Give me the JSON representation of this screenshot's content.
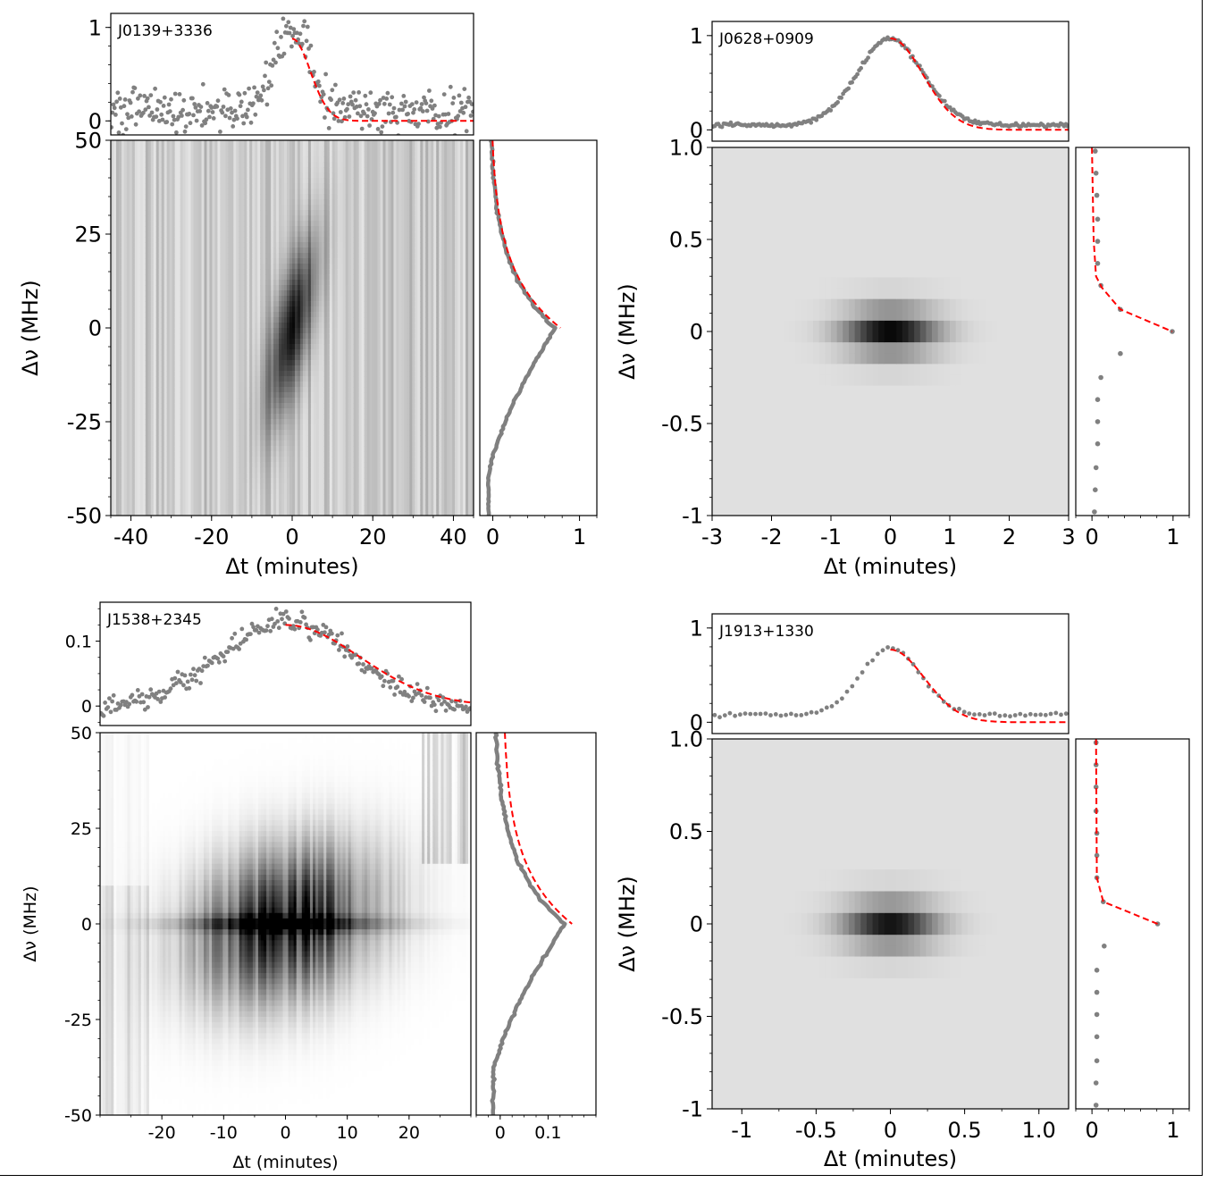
{
  "figure": {
    "description": "Dynamic spectra of four pulsars with time and frequency profiles",
    "colors": {
      "data_points": "#808080",
      "fit_line": "#ff0000",
      "axes": "#000000",
      "background": "#ffffff"
    }
  },
  "chart_data": [
    {
      "type": "heatmap",
      "title": "J0139+3336",
      "xlabel": "Δt (minutes)",
      "ylabel": "Δν (MHz)",
      "xlim": [
        -45,
        45
      ],
      "ylim": [
        -50,
        50
      ],
      "xticks": [
        -40,
        -20,
        0,
        20,
        40
      ],
      "xtick_labels": [
        "-40",
        "-20",
        "0",
        "20",
        "40"
      ],
      "yticks": [
        -50,
        -25,
        0,
        25,
        50
      ],
      "ytick_labels": [
        "-50",
        "-25",
        "0",
        "25",
        "50"
      ],
      "heatmap": {
        "colormap": "gray_r",
        "feature": "tilted elongated peak through origin",
        "slope_min_per_mhz": 0.18,
        "noise": "vertical striping"
      },
      "time_profile": {
        "ylim": [
          -0.15,
          1.15
        ],
        "yticks": [
          0,
          1
        ],
        "ytick_labels": [
          "0",
          "1"
        ],
        "peak_x": 0,
        "peak_y": 0.9,
        "width_min": 4.5,
        "noise_sigma": 0.12,
        "baseline": 0.05,
        "fit": {
          "type": "exponential decay",
          "start_x": 0,
          "amplitude": 0.88,
          "tau_min": 4.5,
          "offset": 0
        }
      },
      "freq_profile": {
        "xlim": [
          -0.15,
          1.2
        ],
        "xticks": [
          0,
          1
        ],
        "xtick_labels": [
          "0",
          "1"
        ],
        "peak_y": 0,
        "peak_value": 0.72,
        "min_value": -0.05,
        "fit": {
          "type": "upper-half decay",
          "peak_value": 0.78,
          "end_value": -0.03
        }
      }
    },
    {
      "type": "heatmap",
      "title": "J0628+0909",
      "xlabel": "Δt (minutes)",
      "ylabel": "Δν (MHz)",
      "xlim": [
        -3,
        3
      ],
      "ylim": [
        -1,
        1
      ],
      "xticks": [
        -3,
        -2,
        -1,
        0,
        1,
        2,
        3
      ],
      "xtick_labels": [
        "-3",
        "-2",
        "-1",
        "0",
        "1",
        "2",
        "3"
      ],
      "yticks": [
        -1,
        -0.5,
        0,
        0.5,
        1.0
      ],
      "ytick_labels": [
        "-1",
        "-0.5",
        "0",
        "0.5",
        "1.0"
      ],
      "heatmap": {
        "colormap": "gray_r",
        "feature": "horizontal band centered at 0 MHz, 0 min",
        "background_level": 0.12
      },
      "time_profile": {
        "ylim": [
          -0.12,
          1.15
        ],
        "yticks": [
          0,
          1
        ],
        "ytick_labels": [
          "0",
          "1"
        ],
        "peak_x": 0,
        "peak_y": 0.97,
        "width_min": 0.55,
        "noise_sigma": 0.01,
        "baseline": 0.05,
        "fit": {
          "type": "gaussian decay",
          "start_x": 0,
          "amplitude": 0.97,
          "sigma_min": 0.55,
          "offset": 0
        }
      },
      "freq_profile": {
        "xlim": [
          -0.2,
          1.2
        ],
        "xticks": [
          0,
          1
        ],
        "xtick_labels": [
          "0",
          "1"
        ],
        "points": [
          {
            "y": 0.98,
            "v": 0.04
          },
          {
            "y": 0.86,
            "v": 0.05
          },
          {
            "y": 0.74,
            "v": 0.06
          },
          {
            "y": 0.61,
            "v": 0.07
          },
          {
            "y": 0.49,
            "v": 0.07
          },
          {
            "y": 0.37,
            "v": 0.07
          },
          {
            "y": 0.25,
            "v": 0.11
          },
          {
            "y": 0.12,
            "v": 0.35
          },
          {
            "y": 0.0,
            "v": 0.99
          },
          {
            "y": -0.12,
            "v": 0.35
          },
          {
            "y": -0.25,
            "v": 0.11
          },
          {
            "y": -0.37,
            "v": 0.07
          },
          {
            "y": -0.49,
            "v": 0.07
          },
          {
            "y": -0.61,
            "v": 0.07
          },
          {
            "y": -0.74,
            "v": 0.05
          },
          {
            "y": -0.86,
            "v": 0.04
          },
          {
            "y": -0.98,
            "v": 0.03
          }
        ],
        "fit_points": [
          {
            "y": 1.0,
            "v": 0.0
          },
          {
            "y": 0.5,
            "v": 0.02
          },
          {
            "y": 0.3,
            "v": 0.05
          },
          {
            "y": 0.24,
            "v": 0.12
          },
          {
            "y": 0.12,
            "v": 0.35
          },
          {
            "y": 0.0,
            "v": 0.99
          }
        ]
      }
    },
    {
      "type": "heatmap",
      "title": "J1538+2345",
      "xlabel": "Δt (minutes)",
      "ylabel": "Δν (MHz)",
      "xlim": [
        -30,
        30
      ],
      "ylim": [
        -50,
        50
      ],
      "xticks": [
        -20,
        -10,
        0,
        10,
        20
      ],
      "xtick_labels": [
        "-20",
        "-10",
        "0",
        "10",
        "20"
      ],
      "yticks": [
        -50,
        -25,
        0,
        25,
        50
      ],
      "ytick_labels": [
        "-50",
        "-25",
        "0",
        "25",
        "50"
      ],
      "heatmap": {
        "colormap": "gray_r",
        "feature": "broad tilted emission, dark core at origin, edge RFI stripes"
      },
      "time_profile": {
        "ylim": [
          -0.03,
          0.16
        ],
        "yticks": [
          0,
          0.1
        ],
        "ytick_labels": [
          "0",
          "0.1"
        ],
        "peak_x": 0,
        "peak_y": 0.13,
        "width_min": 11,
        "noise_sigma": 0.008,
        "baseline": -0.005,
        "fit": {
          "type": "gaussian decay",
          "start_x": 0,
          "amplitude": 0.125,
          "sigma_min": 12,
          "offset": 0
        }
      },
      "freq_profile": {
        "xlim": [
          -0.05,
          0.2
        ],
        "xticks": [
          0,
          0.1
        ],
        "xtick_labels": [
          "0",
          "0.1"
        ],
        "peak_y": 0,
        "peak_value": 0.135,
        "min_value": -0.015,
        "fit": {
          "type": "upper-half decay",
          "peak_value": 0.15,
          "end_value": 0.005
        }
      }
    },
    {
      "type": "heatmap",
      "title": "J1913+1330",
      "xlabel": "Δt (minutes)",
      "ylabel": "Δν (MHz)",
      "xlim": [
        -1.2,
        1.2
      ],
      "ylim": [
        -1,
        1
      ],
      "xticks": [
        -1,
        -0.5,
        0,
        0.5,
        1.0
      ],
      "xtick_labels": [
        "-1",
        "-0.5",
        "0",
        "0.5",
        "1.0"
      ],
      "yticks": [
        -1,
        -0.5,
        0,
        0.5,
        1.0
      ],
      "ytick_labels": [
        "-1",
        "-0.5",
        "0",
        "0.5",
        "1.0"
      ],
      "heatmap": {
        "colormap": "gray_r",
        "feature": "narrow horizontal band centered at 0 MHz, 0 min",
        "background_level": 0.12
      },
      "time_profile": {
        "ylim": [
          -0.12,
          1.15
        ],
        "yticks": [
          0,
          1
        ],
        "ytick_labels": [
          "0",
          "1"
        ],
        "peak_x": 0,
        "peak_y": 0.79,
        "width_min": 0.2,
        "noise_sigma": 0.01,
        "baseline": 0.08,
        "fit": {
          "type": "gaussian decay",
          "start_x": 0,
          "amplitude": 0.77,
          "sigma_min": 0.23,
          "offset": 0
        }
      },
      "freq_profile": {
        "xlim": [
          -0.2,
          1.2
        ],
        "xticks": [
          0,
          1
        ],
        "xtick_labels": [
          "0",
          "1"
        ],
        "points": [
          {
            "y": 0.98,
            "v": 0.05
          },
          {
            "y": 0.86,
            "v": 0.05
          },
          {
            "y": 0.74,
            "v": 0.05
          },
          {
            "y": 0.61,
            "v": 0.05
          },
          {
            "y": 0.49,
            "v": 0.06
          },
          {
            "y": 0.37,
            "v": 0.06
          },
          {
            "y": 0.25,
            "v": 0.06
          },
          {
            "y": 0.12,
            "v": 0.14
          },
          {
            "y": 0.0,
            "v": 0.81
          },
          {
            "y": -0.12,
            "v": 0.15
          },
          {
            "y": -0.25,
            "v": 0.06
          },
          {
            "y": -0.37,
            "v": 0.06
          },
          {
            "y": -0.49,
            "v": 0.06
          },
          {
            "y": -0.61,
            "v": 0.06
          },
          {
            "y": -0.74,
            "v": 0.06
          },
          {
            "y": -0.86,
            "v": 0.05
          },
          {
            "y": -0.98,
            "v": 0.05
          }
        ],
        "fit_points": [
          {
            "y": 1.0,
            "v": 0.05
          },
          {
            "y": 0.25,
            "v": 0.06
          },
          {
            "y": 0.12,
            "v": 0.14
          },
          {
            "y": 0.0,
            "v": 0.81
          }
        ]
      }
    }
  ]
}
